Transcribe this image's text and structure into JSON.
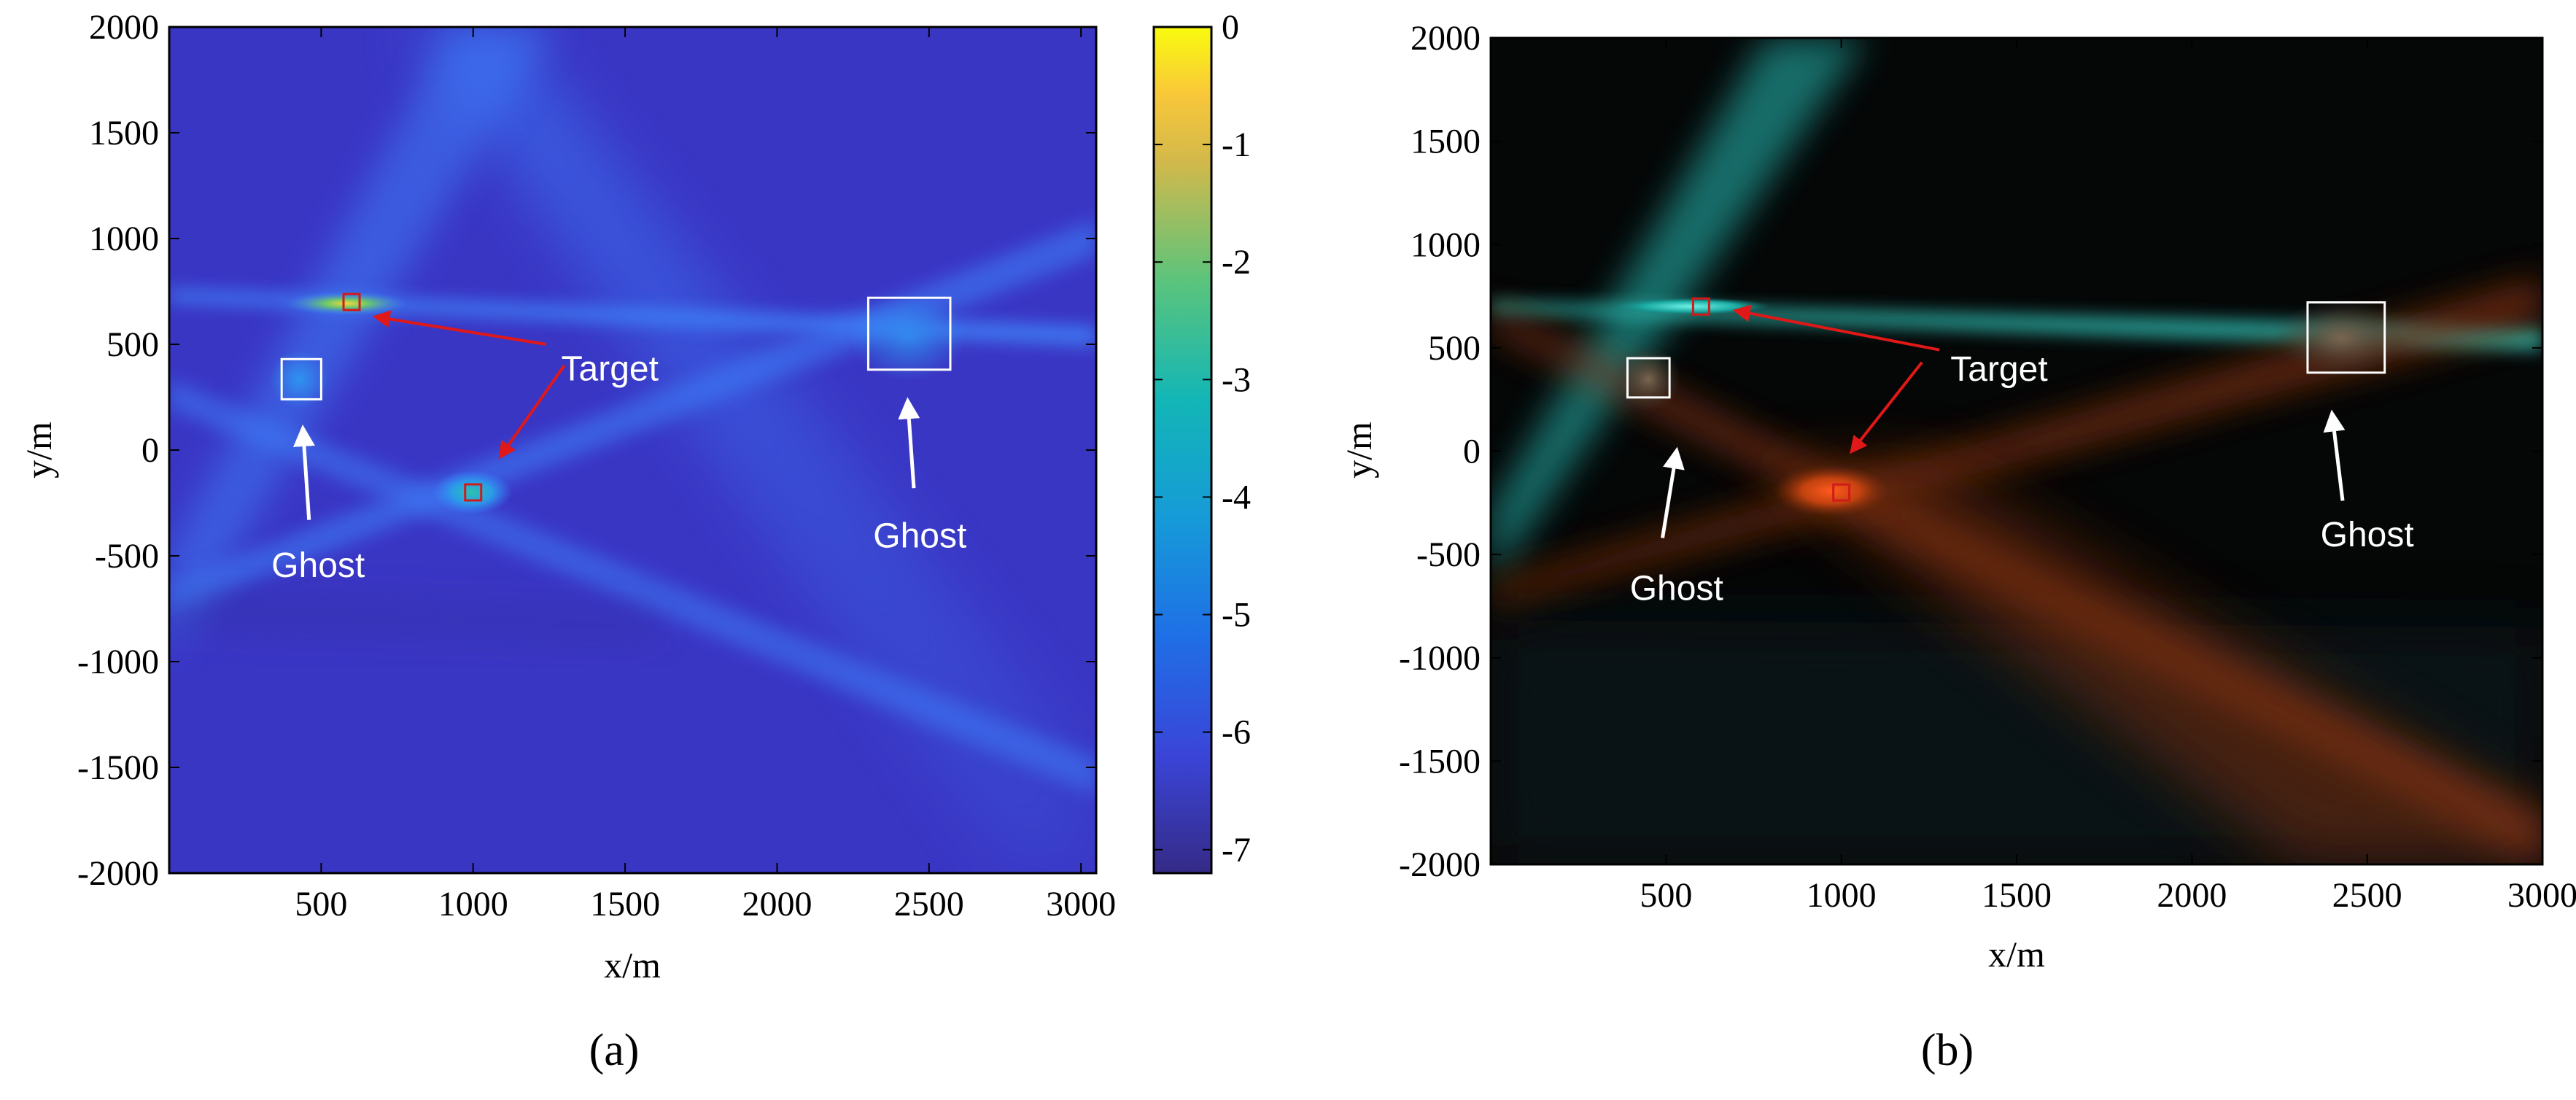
{
  "colors": {
    "background": "#ffffff",
    "panel_a_base": "#3a36c4",
    "panel_b_base": "#050606",
    "target_marker": "#d11a1a",
    "ghost_box": "#ffffff",
    "target_arrow": "#e01818",
    "ghost_arrow": "#ffffff"
  },
  "chart_data": [
    {
      "id": "a",
      "panel_label": "(a)",
      "type": "heatmap",
      "xlabel": "x/m",
      "ylabel": "y/m",
      "xlim": [
        0,
        3050
      ],
      "ylim": [
        -2000,
        2000
      ],
      "xticks": [
        500,
        1000,
        1500,
        2000,
        2500,
        3000
      ],
      "yticks": [
        -2000,
        -1500,
        -1000,
        -500,
        0,
        500,
        1000,
        1500,
        2000
      ],
      "colorbar": {
        "range": [
          -7.2,
          0
        ],
        "ticks": [
          0,
          -1,
          -2,
          -3,
          -4,
          -5,
          -6,
          -7
        ],
        "colormap": "parula"
      },
      "targets": [
        {
          "x": 600,
          "y": 700
        },
        {
          "x": 1000,
          "y": -200
        }
      ],
      "ghost_boxes": [
        {
          "x0": 370,
          "x1": 500,
          "y0": 240,
          "y1": 430
        },
        {
          "x0": 2300,
          "x1": 2570,
          "y0": 380,
          "y1": 720
        }
      ],
      "annotations": [
        {
          "text": "Target",
          "x": 1450,
          "y": 330
        },
        {
          "text": "Ghost",
          "x": 490,
          "y": -600
        },
        {
          "text": "Ghost",
          "x": 2470,
          "y": -460
        }
      ],
      "arrows": [
        {
          "kind": "target",
          "from": [
            1240,
            500
          ],
          "to": [
            680,
            630
          ]
        },
        {
          "kind": "target",
          "from": [
            1300,
            400
          ],
          "to": [
            1090,
            -30
          ]
        },
        {
          "kind": "ghost",
          "from": [
            460,
            -330
          ],
          "to": [
            440,
            100
          ]
        },
        {
          "kind": "ghost",
          "from": [
            2450,
            -180
          ],
          "to": [
            2430,
            230
          ]
        }
      ]
    },
    {
      "id": "b",
      "panel_label": "(b)",
      "type": "heatmap",
      "xlabel": "x/m",
      "ylabel": "y/m",
      "xlim": [
        0,
        3000
      ],
      "ylim": [
        -2000,
        2000
      ],
      "xticks": [
        500,
        1000,
        1500,
        2000,
        2500,
        3000
      ],
      "yticks": [
        -2000,
        -1500,
        -1000,
        -500,
        0,
        500,
        1000,
        1500,
        2000
      ],
      "targets": [
        {
          "x": 600,
          "y": 700
        },
        {
          "x": 1000,
          "y": -200
        }
      ],
      "ghost_boxes": [
        {
          "x0": 390,
          "x1": 510,
          "y0": 260,
          "y1": 450
        },
        {
          "x0": 2330,
          "x1": 2550,
          "y0": 380,
          "y1": 720
        }
      ],
      "annotations": [
        {
          "text": "Target",
          "x": 1450,
          "y": 340
        },
        {
          "text": "Ghost",
          "x": 530,
          "y": -720
        },
        {
          "text": "Ghost",
          "x": 2500,
          "y": -460
        }
      ],
      "arrows": [
        {
          "kind": "target",
          "from": [
            1280,
            490
          ],
          "to": [
            700,
            680
          ]
        },
        {
          "kind": "target",
          "from": [
            1230,
            430
          ],
          "to": [
            1030,
            0
          ]
        },
        {
          "kind": "ghost",
          "from": [
            490,
            -420
          ],
          "to": [
            530,
            0
          ]
        },
        {
          "kind": "ghost",
          "from": [
            2430,
            -240
          ],
          "to": [
            2400,
            180
          ]
        }
      ]
    }
  ]
}
